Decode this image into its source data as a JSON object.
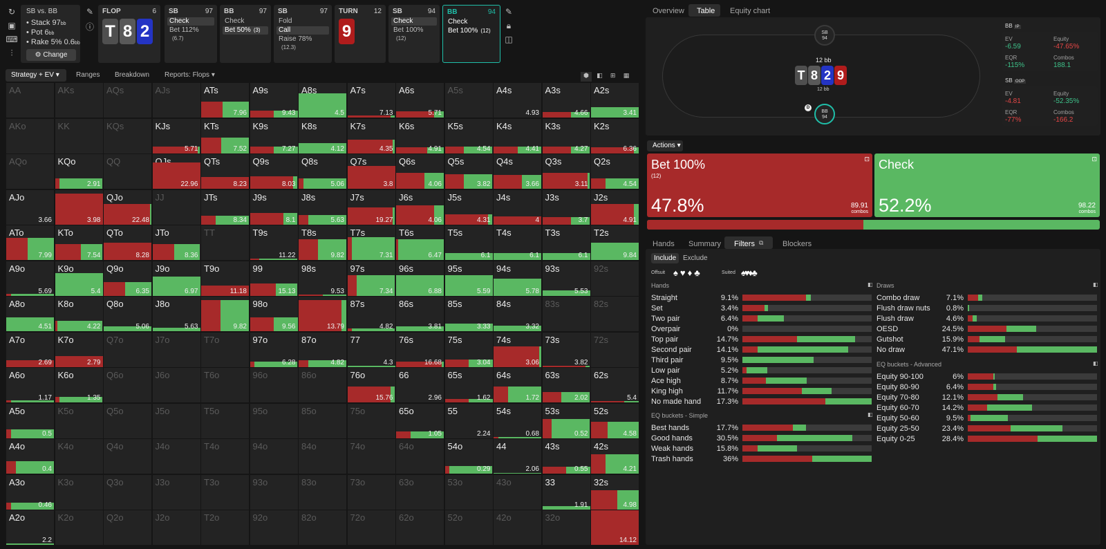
{
  "colors": {
    "bet": "#a72a2a",
    "check": "#5ab862",
    "bg": "#151515",
    "panel": "#262626",
    "accent": "#1fbfa9"
  },
  "nav": {
    "spot": "SB vs. BB",
    "stack": "Stack 97",
    "stack_unit": "bb",
    "pot": "Pot 6",
    "pot_unit": "bb",
    "rake": "Rake 5%",
    "rake_val": "0.6",
    "rake_unit": "bb",
    "change_label": "Change",
    "icons": [
      "reset-icon",
      "save-icon",
      "gamepad-icon",
      "align-icon"
    ],
    "side_icons": [
      "pencil-icon",
      "info-icon"
    ]
  },
  "streets": [
    {
      "kind": "board",
      "title": "FLOP",
      "num": "6",
      "cards": [
        {
          "r": "T",
          "s": "s"
        },
        {
          "r": "8",
          "s": "c"
        },
        {
          "r": "2",
          "s": "d"
        }
      ]
    },
    {
      "kind": "action",
      "title": "SB",
      "num": "97",
      "lines": [
        "Check",
        "Bet 112%"
      ],
      "sel": 0,
      "extra": [
        "",
        "(6.7)"
      ]
    },
    {
      "kind": "action",
      "title": "BB",
      "num": "97",
      "lines": [
        "Check",
        "Bet 50%"
      ],
      "sel": 1,
      "extra": [
        "",
        "(3)"
      ]
    },
    {
      "kind": "action",
      "title": "SB",
      "num": "97",
      "lines": [
        "Fold",
        "Call",
        "Raise 78%"
      ],
      "sel": 1,
      "extra": [
        "",
        "",
        "(12.3)"
      ]
    },
    {
      "kind": "board",
      "title": "TURN",
      "num": "12",
      "cards": [
        {
          "r": "9",
          "s": "h"
        }
      ]
    },
    {
      "kind": "action",
      "title": "SB",
      "num": "94",
      "lines": [
        "Check",
        "Bet 100%"
      ],
      "sel": 0,
      "extra": [
        "",
        "(12)"
      ]
    },
    {
      "kind": "action",
      "title": "BB",
      "num": "94",
      "lines": [
        "Check",
        "Bet 100%"
      ],
      "sel": -1,
      "extra": [
        "",
        "(12)"
      ],
      "active": true
    }
  ],
  "street_side_icons": [
    "pencil-icon",
    "lock-icon",
    "book-icon"
  ],
  "toolbar": {
    "strategy": "Strategy + EV",
    "ranges": "Ranges",
    "breakdown": "Breakdown",
    "reports": "Reports: Flops",
    "icons": [
      "cube-icon",
      "contrast-icon",
      "grid-small-icon",
      "grid-large-icon",
      "square-icon"
    ]
  },
  "grid": [
    [
      "AA||||0",
      "AKs||||0",
      "AQs||||0",
      "AJs||||0",
      "ATs|7.96|0.45|0.55|0.46",
      "A9s|9.43|0.5|0.5|0.2",
      "A8s|4.5|0|1|0.7",
      "A7s|7.13|0.9|0.1|0.06",
      "A6s|5.71|0.8|0.2|0.17",
      "A5s||||0",
      "A4s|4.93|||0",
      "A3s|4.66|0.6|0.4|0.15",
      "A2s|3.41|0|1|0.3"
    ],
    [
      "AKo||||0",
      "KK||||0",
      "KQs||||0",
      "KJs|5.71|0.95|0.05|0.2",
      "KTs|7.52|0.42|0.58|0.46",
      "K9s|7.27|0.5|0.5|0.2",
      "K8s|4.12|0|1|0.3",
      "K7s|4.35|0.95|0.05|0.4",
      "K6s|4.91|0.65|0.35|0.18",
      "K5s|4.54|0.4|0.6|0.2",
      "K4s|4.41|0.5|0.5|0.2",
      "K3s|4.27|0.6|0.4|0.2",
      "K2s|6.36|0.9|0.1|0.18"
    ],
    [
      "AQo||||0",
      "KQo|2.91|0.1|0.9|0.3",
      "QQ||||0",
      "QJs|22.96|1|0|0.75",
      "QTs|8.23|1|0|0.33",
      "Q9s|8.03|0.9|0.1|0.35",
      "Q8s|5.06|0.1|0.9|0.3",
      "Q7s|3.8|1|0|0.65",
      "Q6s|4.06|0.6|0.4|0.45",
      "Q5s|3.82|0.4|0.6|0.42",
      "Q4s|3.66|0.6|0.4|0.4",
      "Q3s|3.11|0.95|0.05|0.45",
      "Q2s|4.54|0.3|0.7|0.3"
    ],
    [
      "AJo|3.66|||0",
      "KJo|3.98|1|0|0.9",
      "QJo|22.48|0.97|0.03|0.6",
      "JJ||||0",
      "JTs|8.34|0.3|0.7|0.26",
      "J9s|8.1|0.7|0.3|0.33",
      "J8s|5.63|0.2|0.8|0.28",
      "J7s|19.27|0.95|0.05|0.5",
      "J6s|4.06|0.8|0.2|0.55",
      "J5s|4.31|0.9|0.1|0.3",
      "J4s|4|1|0|0.24",
      "J3s|3.7|0.6|0.4|0.22",
      "J2s|4.91|0.9|0.1|0.6"
    ],
    [
      "ATo|7.99|0.45|0.55|0.63",
      "KTo|7.54|0.55|0.45|0.45",
      "QTo|8.28|1|0|0.5",
      "JTo|8.36|0.45|0.55|0.45",
      "TT||||0",
      "T9s|11.22|0.2|0.8|0.04",
      "T8s|9.82|0.4|0.6|0.6",
      "T7s|7.31|0.1|0.9|0.65",
      "T6s|6.47|0.05|0.95|0.6",
      "T5s|6.1|0|1|0.2",
      "T4s|6.1|0|1|0.2",
      "T3s|6.1|0|1|0.2",
      "T2s|9.84|0|1|0.5"
    ],
    [
      "A9o|5.69|0.1|0.9|0.06",
      "K9o|5.4|0|1|0.65",
      "Q9o|6.35|0.45|0.55|0.4",
      "J9o|6.97|0|1|0.55",
      "T9o|11.18|1|0|0.3",
      "99|15.13|0.55|0.45|0.35",
      "98s|9.53|0.5|0.5|0.04",
      "97s|7.34|0.2|0.8|0.6",
      "96s|6.88|0|1|0.6",
      "95s|5.59|0|1|0.6",
      "94s|5.78|0|1|0.5",
      "93s|5.53|0|1|0.16",
      "92s||||0"
    ],
    [
      "A8o|4.51|0|1|0.4",
      "K8o|4.22|0.05|0.95|0.3",
      "Q8o|5.06|0|1|0.14",
      "J8o|5.63|0|1|0.09",
      "T8o|9.82|0.4|0.6|0.9",
      "98o|9.56|0.5|0.5|0.4",
      "88|13.79|0.9|0.1|0.9",
      "87s|4.82|0.1|0.9|0.08",
      "86s|3.81|0|1|0.14",
      "85s|3.33|0|1|0.22",
      "84s|3.32|0|1|0.16",
      "83s||||0",
      "82s||||0"
    ],
    [
      "A7o|2.69|1|0|0.2",
      "K7o|2.79|1|0|0.32",
      "Q7o||||0",
      "J7o||||0",
      "T7o||||0",
      "97o|6.28|0.1|0.9|0.16",
      "87o|4.82|0.2|0.8|0.2",
      "77|4.3|0|1|0.04",
      "76s|16.68|0.95|0.05|0.16",
      "75s|3.04|0.5|0.5|0.22",
      "74s|3.06|0.95|0.05|0.6",
      "73s|3.82|0.9|0.1|0.04",
      "72s||||0"
    ],
    [
      "A6o|1.17|0.1|0.9|0.06",
      "K6o|1.35|0.1|0.9|0.16",
      "Q6o||||0",
      "J6o||||0",
      "T6o||||0",
      "96o||||0",
      "86o||||0",
      "76o|15.76|0.9|0.1|0.45",
      "66|2.96|||0",
      "65s|1.62|0.5|0.5|0.1",
      "64s|1.72|0.3|0.7|0.45",
      "63s|2.02|0.4|0.6|0.3",
      "62s|5.4|0.7|0.3|0.04"
    ],
    [
      "A5o|0.5|0.1|0.9|0.25",
      "K5o||||0",
      "Q5o||||0",
      "J5o||||0",
      "T5o||||0",
      "95o||||0",
      "85o||||0",
      "75o||||0",
      "65o|1.05|0.3|0.7|0.2",
      "55|2.24|||0",
      "54s|0.68|0.1|0.9|0.04",
      "53s|0.52|0.2|0.8|0.55",
      "52s|4.58|0.35|0.65|0.48"
    ],
    [
      "A4o|0.4|0.2|0.8|0.35",
      "K4o||||0",
      "Q4o||||0",
      "J4o||||0",
      "T4o||||0",
      "94o||||0",
      "84o||||0",
      "74o||||0",
      "64o||||0",
      "54o|0.29|0.1|0.9|0.22",
      "44|2.06|0|1|0.02",
      "43s|0.55|0.5|0.5|0.2",
      "42s|4.21|0.3|0.7|0.55"
    ],
    [
      "A3o|0.46|0.1|0.9|0.2",
      "K3o||||0",
      "Q3o||||0",
      "J3o||||0",
      "T3o||||0",
      "93o||||0",
      "83o||||0",
      "73o||||0",
      "63o||||0",
      "53o||||0",
      "43o||||0",
      "33|1.91|0|1|0.1",
      "32s|4.98|0.55|0.45|0.55"
    ],
    [
      "A2o|2.2|0|1|0.04",
      "K2o||||0",
      "Q2o||||0",
      "J2o||||0",
      "T2o||||0",
      "92o||||0",
      "82o||||0",
      "72o||||0",
      "62o||||0",
      "52o||||0",
      "42o||||0",
      "32o||||0",
      "22|14.12|1|0|1"
    ]
  ],
  "right_tabs": [
    "Overview",
    "Table",
    "Equity chart"
  ],
  "table": {
    "sb_label": "SB",
    "sb_stack": "94",
    "bb_label": "BB",
    "bb_stack": "94",
    "pot": "12 bb",
    "bet": "12 bb",
    "dealer": "D",
    "board": [
      {
        "r": "T",
        "s": "s"
      },
      {
        "r": "8",
        "s": "c"
      },
      {
        "r": "2",
        "s": "d"
      },
      {
        "r": "9",
        "s": "h"
      }
    ]
  },
  "eq_bb": {
    "head": "BB",
    "pos": "IP",
    "ev_k": "EV",
    "ev": "-6.59",
    "eq_k": "Equity",
    "eq": "-47.65%",
    "eqr_k": "EQR",
    "eqr": "-115%",
    "combos_k": "Combos",
    "combos": "188.1"
  },
  "eq_sb": {
    "head": "SB",
    "pos": "OOP",
    "ev_k": "EV",
    "ev": "-4.81",
    "eq_k": "Equity",
    "eq": "-52.35%",
    "eqr_k": "EQR",
    "eqr": "-77%",
    "combos_k": "Combos",
    "combos": "-166.2"
  },
  "actions": {
    "label": "Actions",
    "bet_title": "Bet 100%",
    "bet_size": "(12)",
    "bet_pct": "47.8%",
    "bet_combos": "89.91",
    "check_title": "Check",
    "check_pct": "52.2%",
    "check_combos": "98.22",
    "combos_word": "combos",
    "bet_frac": 0.478
  },
  "lower_tabs": [
    "Hands",
    "Summary",
    "Filters",
    "Blockers"
  ],
  "filters": {
    "include": "Include",
    "exclude": "Exclude",
    "offsuit": "Offsuit",
    "suited": "Suited",
    "suits": [
      "♠",
      "♥",
      "♦",
      "♣"
    ]
  },
  "hands": {
    "title": "Hands",
    "rows": [
      [
        "Straight",
        "9.1%",
        0.49,
        0.04
      ],
      [
        "Set",
        "3.4%",
        0.17,
        0.03
      ],
      [
        "Two pair",
        "6.4%",
        0.12,
        0.2
      ],
      [
        "Overpair",
        "0%",
        0,
        0
      ],
      [
        "Top pair",
        "14.7%",
        0.42,
        0.45
      ],
      [
        "Second pair",
        "14.1%",
        0.12,
        0.7
      ],
      [
        "Third pair",
        "9.5%",
        0,
        0.55
      ],
      [
        "Low pair",
        "5.2%",
        0.03,
        0.16
      ],
      [
        "Ace high",
        "8.7%",
        0.18,
        0.32
      ],
      [
        "King high",
        "11.7%",
        0.46,
        0.23
      ],
      [
        "No made hand",
        "17.3%",
        0.64,
        0.36
      ]
    ]
  },
  "eq_simple": {
    "title": "EQ buckets - Simple",
    "rows": [
      [
        "Best hands",
        "17.7%",
        0.39,
        0.1
      ],
      [
        "Good hands",
        "30.5%",
        0.27,
        0.58
      ],
      [
        "Weak hands",
        "15.8%",
        0.12,
        0.3
      ],
      [
        "Trash hands",
        "36%",
        0.54,
        0.46
      ]
    ]
  },
  "draws": {
    "title": "Draws",
    "rows": [
      [
        "Combo draw",
        "7.1%",
        0.08,
        0.03
      ],
      [
        "Flush draw nuts",
        "0.8%",
        0,
        0.01
      ],
      [
        "Flush draw",
        "4.6%",
        0.04,
        0.03
      ],
      [
        "OESD",
        "24.5%",
        0.3,
        0.23
      ],
      [
        "Gutshot",
        "15.9%",
        0.09,
        0.2
      ],
      [
        "No draw",
        "47.1%",
        0.38,
        0.62
      ]
    ]
  },
  "eq_adv": {
    "title": "EQ buckets - Advanced",
    "rows": [
      [
        "Equity 90-100",
        "6%",
        0.2,
        0.01
      ],
      [
        "Equity 80-90",
        "6.4%",
        0.2,
        0.02
      ],
      [
        "Equity 70-80",
        "12.1%",
        0.23,
        0.2
      ],
      [
        "Equity 60-70",
        "14.2%",
        0.15,
        0.35
      ],
      [
        "Equity 50-60",
        "9.5%",
        0.02,
        0.29
      ],
      [
        "Equity 25-50",
        "23.4%",
        0.33,
        0.4
      ],
      [
        "Equity 0-25",
        "28.4%",
        0.54,
        0.46
      ]
    ]
  }
}
